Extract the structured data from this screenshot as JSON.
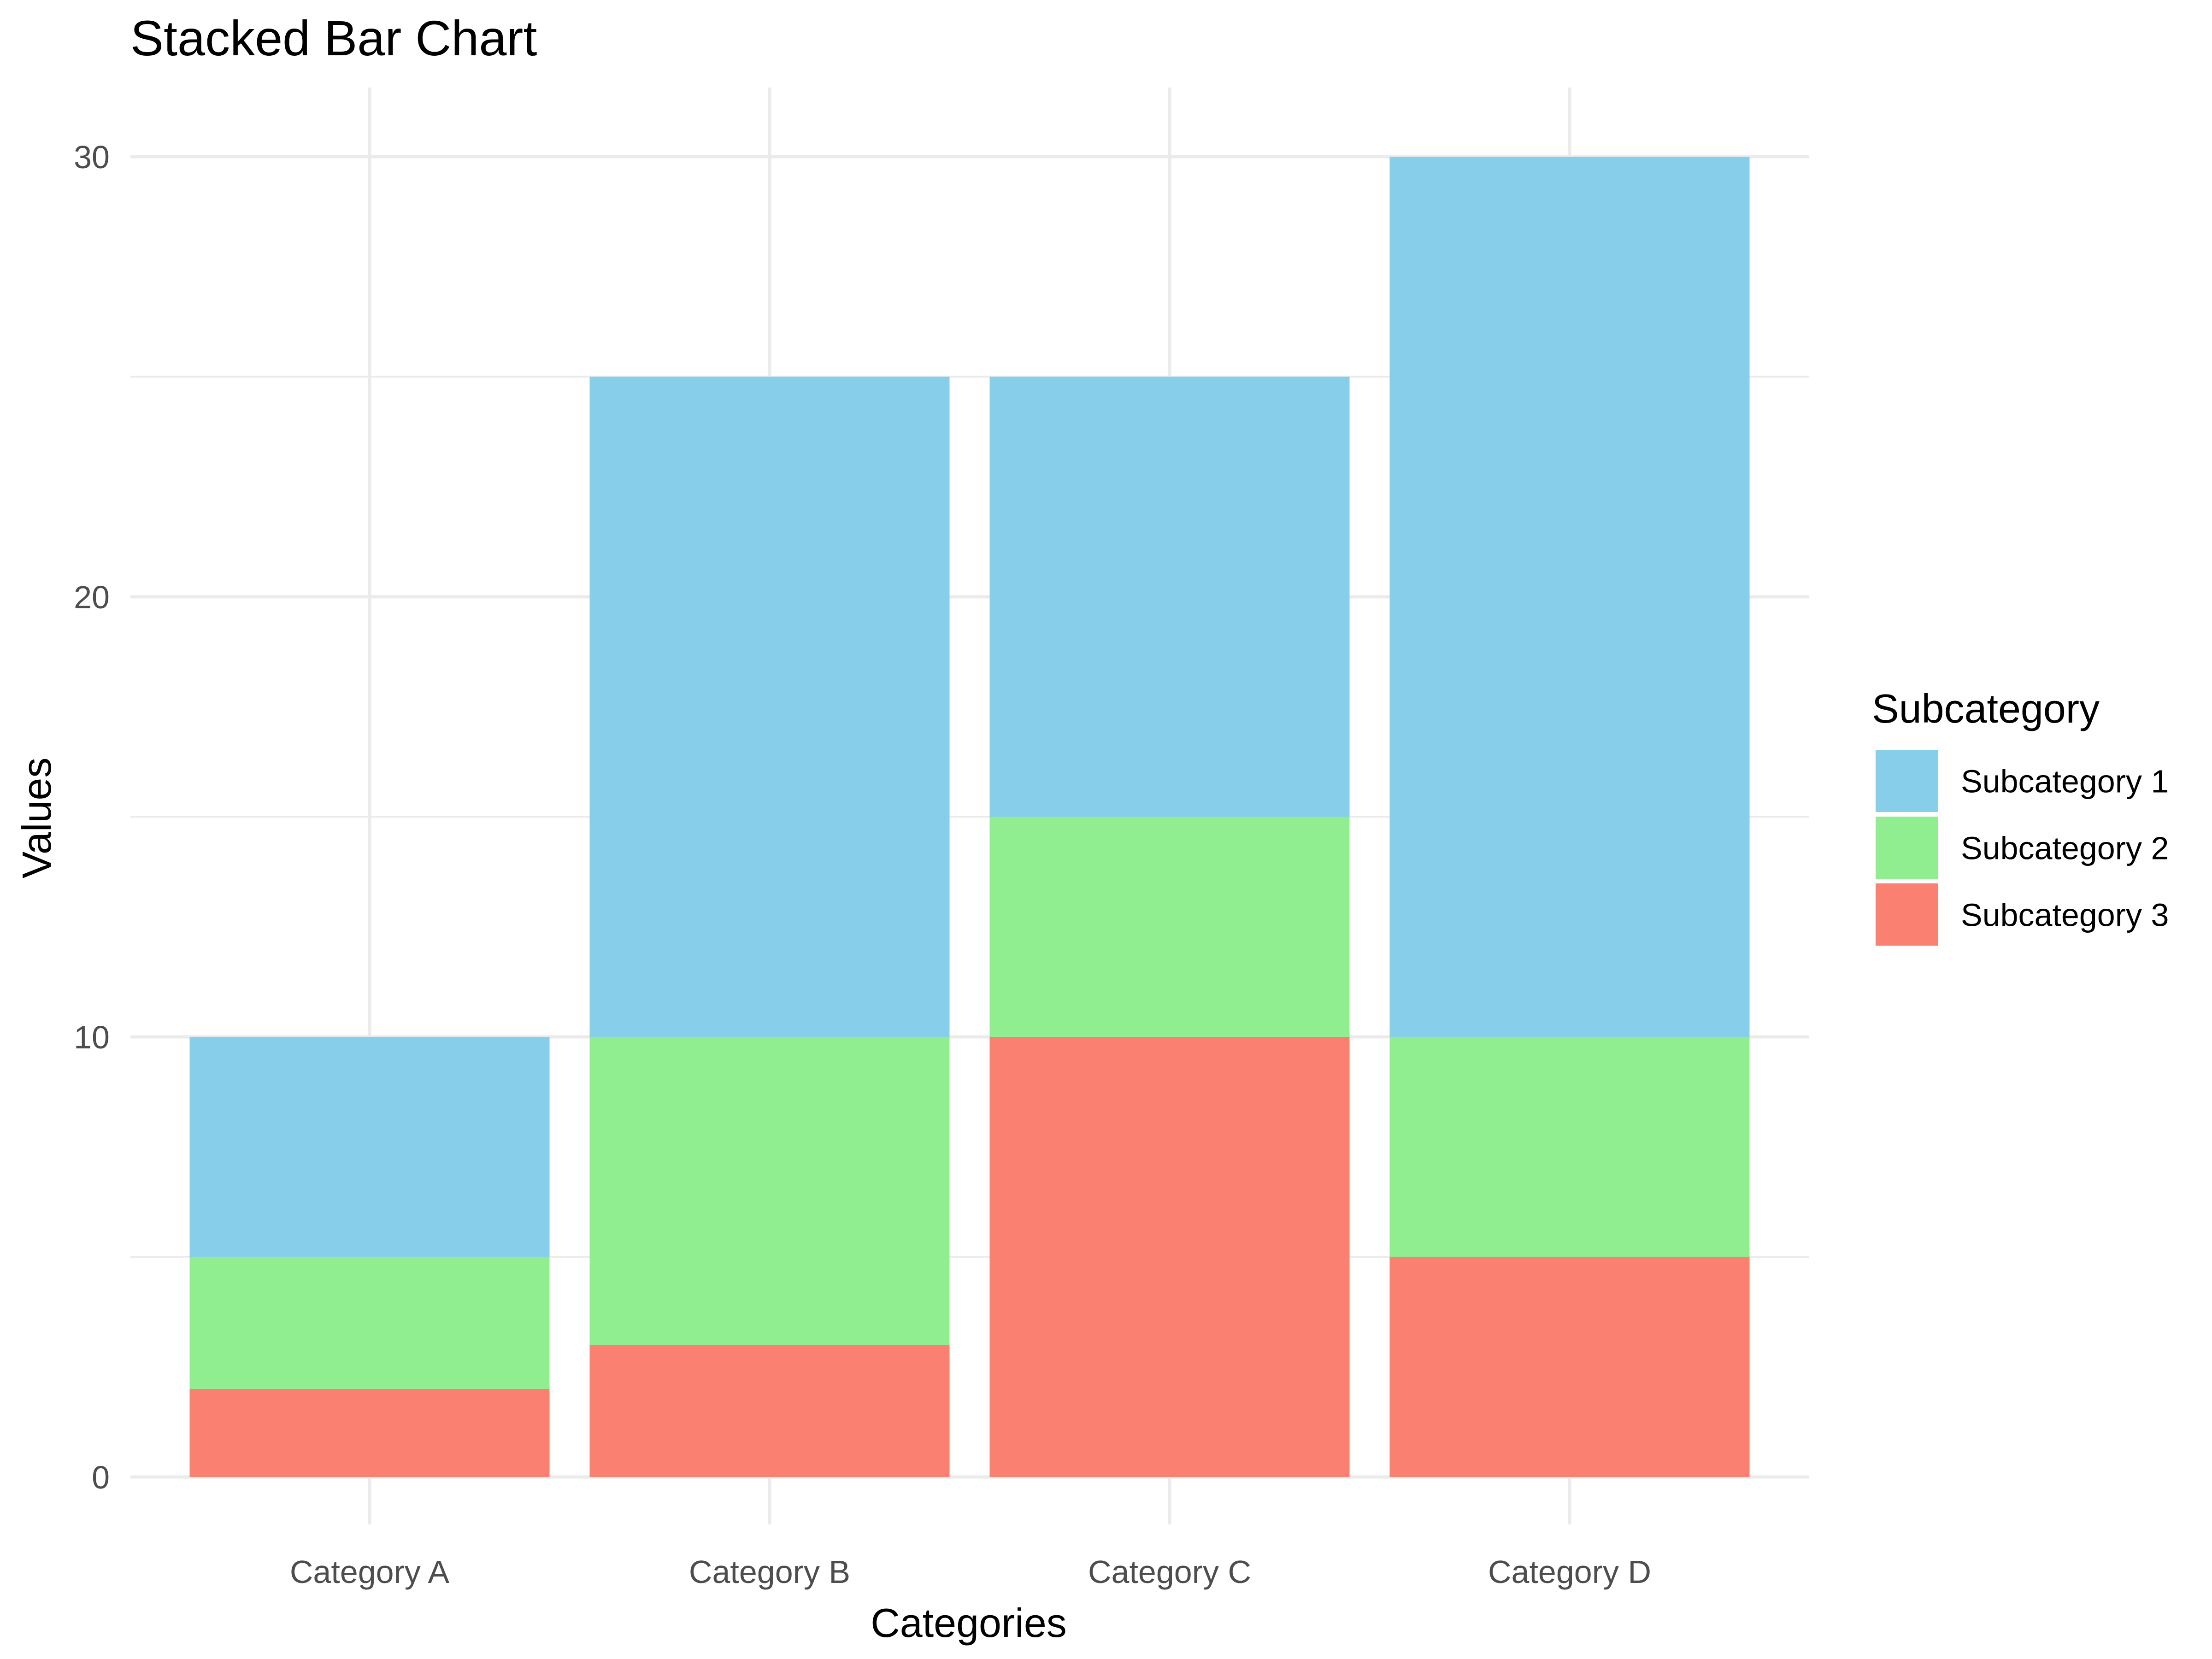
{
  "chart_data": {
    "type": "bar",
    "stacked": true,
    "title": "Stacked Bar Chart",
    "xlabel": "Categories",
    "ylabel": "Values",
    "categories": [
      "Category A",
      "Category B",
      "Category C",
      "Category D"
    ],
    "series": [
      {
        "name": "Subcategory 1",
        "color": "#87CEEB",
        "values": [
          5,
          15,
          10,
          20
        ]
      },
      {
        "name": "Subcategory 2",
        "color": "#90EE90",
        "values": [
          3,
          7,
          5,
          5
        ]
      },
      {
        "name": "Subcategory 3",
        "color": "#FA8072",
        "values": [
          2,
          3,
          10,
          5
        ]
      }
    ],
    "stack_order_bottom_to_top": [
      "Subcategory 3",
      "Subcategory 2",
      "Subcategory 1"
    ],
    "ylim": [
      0,
      30
    ],
    "yticks": [
      0,
      10,
      20,
      30
    ],
    "grid": true,
    "legend": {
      "title": "Subcategory",
      "position": "right"
    }
  }
}
